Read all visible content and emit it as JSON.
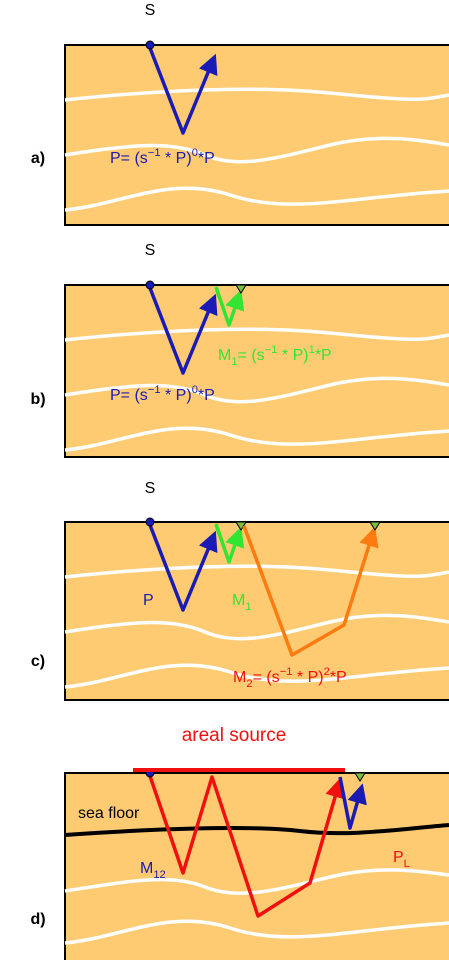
{
  "panels": [
    {
      "label": "a)",
      "source": "S",
      "annotations": [
        [
          {
            "t": "P= (s"
          },
          {
            "sup": "−1"
          },
          {
            "t": " * P)"
          },
          {
            "sup": "0"
          },
          {
            "t": "*P"
          }
        ]
      ]
    },
    {
      "label": "b)",
      "source": "S",
      "annotations": [
        [
          {
            "t": "M"
          },
          {
            "sub": "1"
          },
          {
            "t": "= (s"
          },
          {
            "sup": "−1"
          },
          {
            "t": " * P)"
          },
          {
            "sup": "1"
          },
          {
            "t": "*P"
          }
        ],
        [
          {
            "t": "P= (s"
          },
          {
            "sup": "−1"
          },
          {
            "t": " * P)"
          },
          {
            "sup": "0"
          },
          {
            "t": "*P"
          }
        ]
      ]
    },
    {
      "label": "c)",
      "source": "S",
      "annotations": [
        [
          {
            "t": "P"
          }
        ],
        [
          {
            "t": "M"
          },
          {
            "sub": "1"
          }
        ],
        [
          {
            "t": "M"
          },
          {
            "sub": "2"
          },
          {
            "t": "= (s"
          },
          {
            "sup": "−1"
          },
          {
            "t": " * P)"
          },
          {
            "sup": "2"
          },
          {
            "t": "*P"
          }
        ]
      ]
    },
    {
      "label": "d)",
      "annotations": [
        [
          {
            "t": "areal source"
          }
        ],
        [
          {
            "t": "sea floor"
          }
        ],
        [
          {
            "t": "M"
          },
          {
            "sub": "12"
          }
        ],
        [
          {
            "t": "P"
          },
          {
            "sub": "L"
          }
        ]
      ]
    }
  ]
}
